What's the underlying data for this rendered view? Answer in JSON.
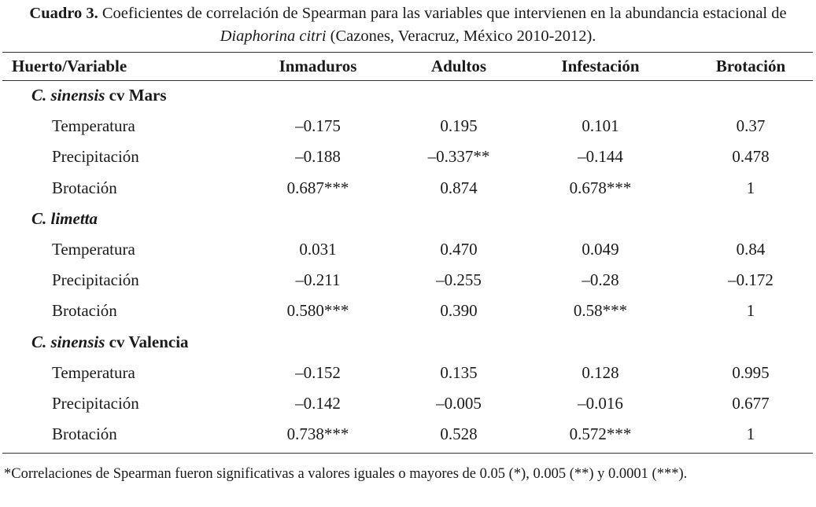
{
  "caption": {
    "label": "Cuadro 3.",
    "text_before": " Coeficientes de correlación de Spearman para las variables que intervienen en la abundancia estacional de ",
    "species": "Diaphorina citri",
    "text_after": " (Cazones, Veracruz, México 2010-2012)."
  },
  "table": {
    "headers": [
      "Huerto/Variable",
      "Inmaduros",
      "Adultos",
      "Infestación",
      "Brotación"
    ],
    "groups": [
      {
        "species": "C. sinensis",
        "cultivar": " cv Mars",
        "rows": [
          {
            "variable": "Temperatura",
            "values": [
              "–0.175",
              "0.195",
              "0.101",
              "0.37"
            ]
          },
          {
            "variable": "Precipitación",
            "values": [
              "–0.188",
              "–0.337**",
              "–0.144",
              "0.478"
            ]
          },
          {
            "variable": "Brotación",
            "values": [
              "0.687***",
              "0.874",
              "0.678***",
              "1"
            ]
          }
        ]
      },
      {
        "species": "C. limetta",
        "cultivar": "",
        "rows": [
          {
            "variable": "Temperatura",
            "values": [
              "0.031",
              "0.470",
              "0.049",
              "0.84"
            ]
          },
          {
            "variable": "Precipitación",
            "values": [
              "–0.211",
              "–0.255",
              "–0.28",
              "–0.172"
            ]
          },
          {
            "variable": "Brotación",
            "values": [
              "0.580***",
              "0.390",
              "0.58***",
              "1"
            ]
          }
        ]
      },
      {
        "species": "C. sinensis",
        "cultivar": " cv Valencia",
        "rows": [
          {
            "variable": "Temperatura",
            "values": [
              "–0.152",
              "0.135",
              "0.128",
              "0.995"
            ]
          },
          {
            "variable": "Precipitación",
            "values": [
              "–0.142",
              "–0.005",
              "–0.016",
              "0.677"
            ]
          },
          {
            "variable": "Brotación",
            "values": [
              "0.738***",
              "0.528",
              "0.572***",
              "1"
            ]
          }
        ]
      }
    ]
  },
  "footnote": "*Correlaciones de Spearman fueron significativas a valores iguales o mayores de 0.05 (*), 0.005 (**) y 0.0001 (***)."
}
